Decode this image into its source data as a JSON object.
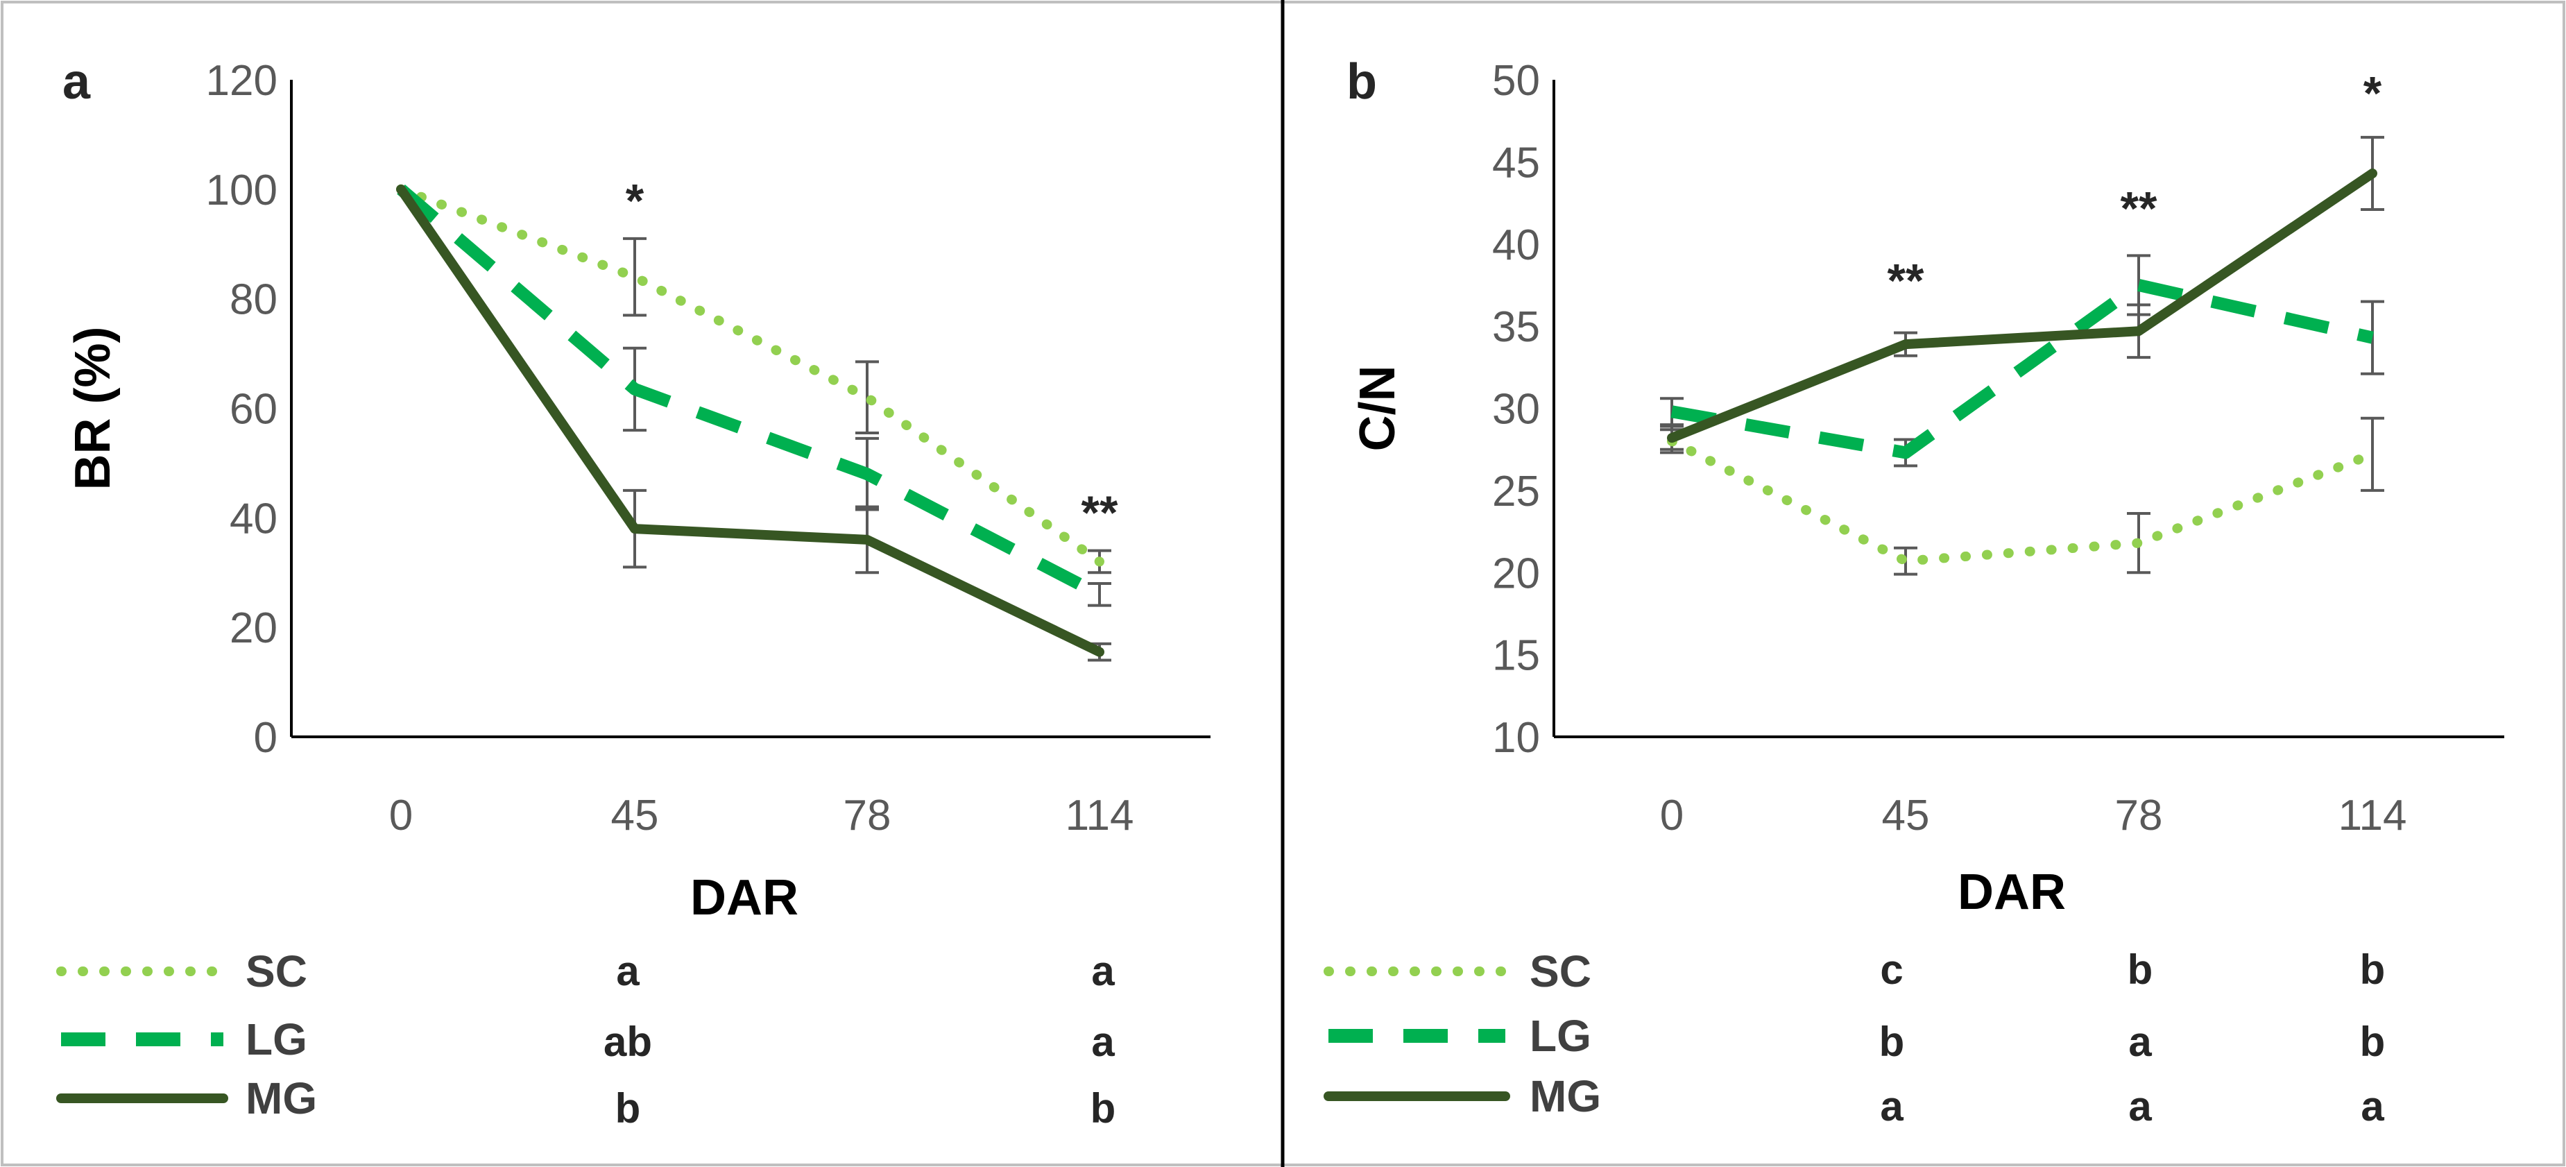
{
  "chart_data": [
    {
      "panel_label": "a",
      "type": "line",
      "categories": [
        "0",
        "45",
        "78",
        "114"
      ],
      "xlabel": "DAR",
      "ylabel": "BR (%)",
      "ylim": [
        0,
        120
      ],
      "yticks": [
        "0",
        "20",
        "40",
        "60",
        "80",
        "100",
        "120"
      ],
      "grid": false,
      "series": [
        {
          "name": "SC",
          "style": "dotted",
          "color": "#92d050",
          "values": [
            100,
            84,
            62,
            32
          ],
          "errors": [
            0,
            7,
            6.5,
            2
          ]
        },
        {
          "name": "LG",
          "style": "dashed",
          "color": "#00b050",
          "values": [
            100,
            63.5,
            48,
            26
          ],
          "errors": [
            0,
            7.5,
            6.5,
            2
          ]
        },
        {
          "name": "MG",
          "style": "solid",
          "color": "#375623",
          "values": [
            100,
            38,
            36,
            15.5
          ],
          "errors": [
            0,
            7,
            6,
            1.5
          ]
        }
      ],
      "annotations": [
        {
          "category": "45",
          "text": "*",
          "value": 95
        },
        {
          "category": "114",
          "text": "**",
          "value": 38
        }
      ],
      "legend": [
        {
          "name": "SC",
          "letters": [
            "a",
            "a"
          ]
        },
        {
          "name": "LG",
          "letters": [
            "ab",
            "a"
          ]
        },
        {
          "name": "MG",
          "letters": [
            "b",
            "b"
          ]
        }
      ]
    },
    {
      "panel_label": "b",
      "type": "line",
      "categories": [
        "0",
        "45",
        "78",
        "114"
      ],
      "xlabel": "DAR",
      "ylabel": "C/N",
      "ylim": [
        10,
        50
      ],
      "yticks": [
        "10",
        "15",
        "20",
        "25",
        "30",
        "35",
        "40",
        "45",
        "50"
      ],
      "grid": false,
      "series": [
        {
          "name": "SC",
          "style": "dotted",
          "color": "#92d050",
          "values": [
            28,
            20.7,
            21.8,
            27.2
          ],
          "errors": [
            0.7,
            0.8,
            1.8,
            2.2
          ]
        },
        {
          "name": "LG",
          "style": "dashed",
          "color": "#00b050",
          "values": [
            29.8,
            27.3,
            37.5,
            34.3
          ],
          "errors": [
            0.8,
            0.8,
            1.8,
            2.2
          ]
        },
        {
          "name": "MG",
          "style": "solid",
          "color": "#375623",
          "values": [
            28.2,
            33.9,
            34.7,
            44.3
          ],
          "errors": [
            0.7,
            0.7,
            1.6,
            2.2
          ]
        }
      ],
      "annotations": [
        {
          "category": "45",
          "text": "**",
          "value": 36.8
        },
        {
          "category": "78",
          "text": "**",
          "value": 41.2
        },
        {
          "category": "114",
          "text": "*",
          "value": 48.2
        }
      ],
      "legend": [
        {
          "name": "SC",
          "letters": [
            "c",
            "b",
            "b"
          ]
        },
        {
          "name": "LG",
          "letters": [
            "b",
            "a",
            "b"
          ]
        },
        {
          "name": "MG",
          "letters": [
            "a",
            "a",
            "a"
          ]
        }
      ]
    }
  ]
}
